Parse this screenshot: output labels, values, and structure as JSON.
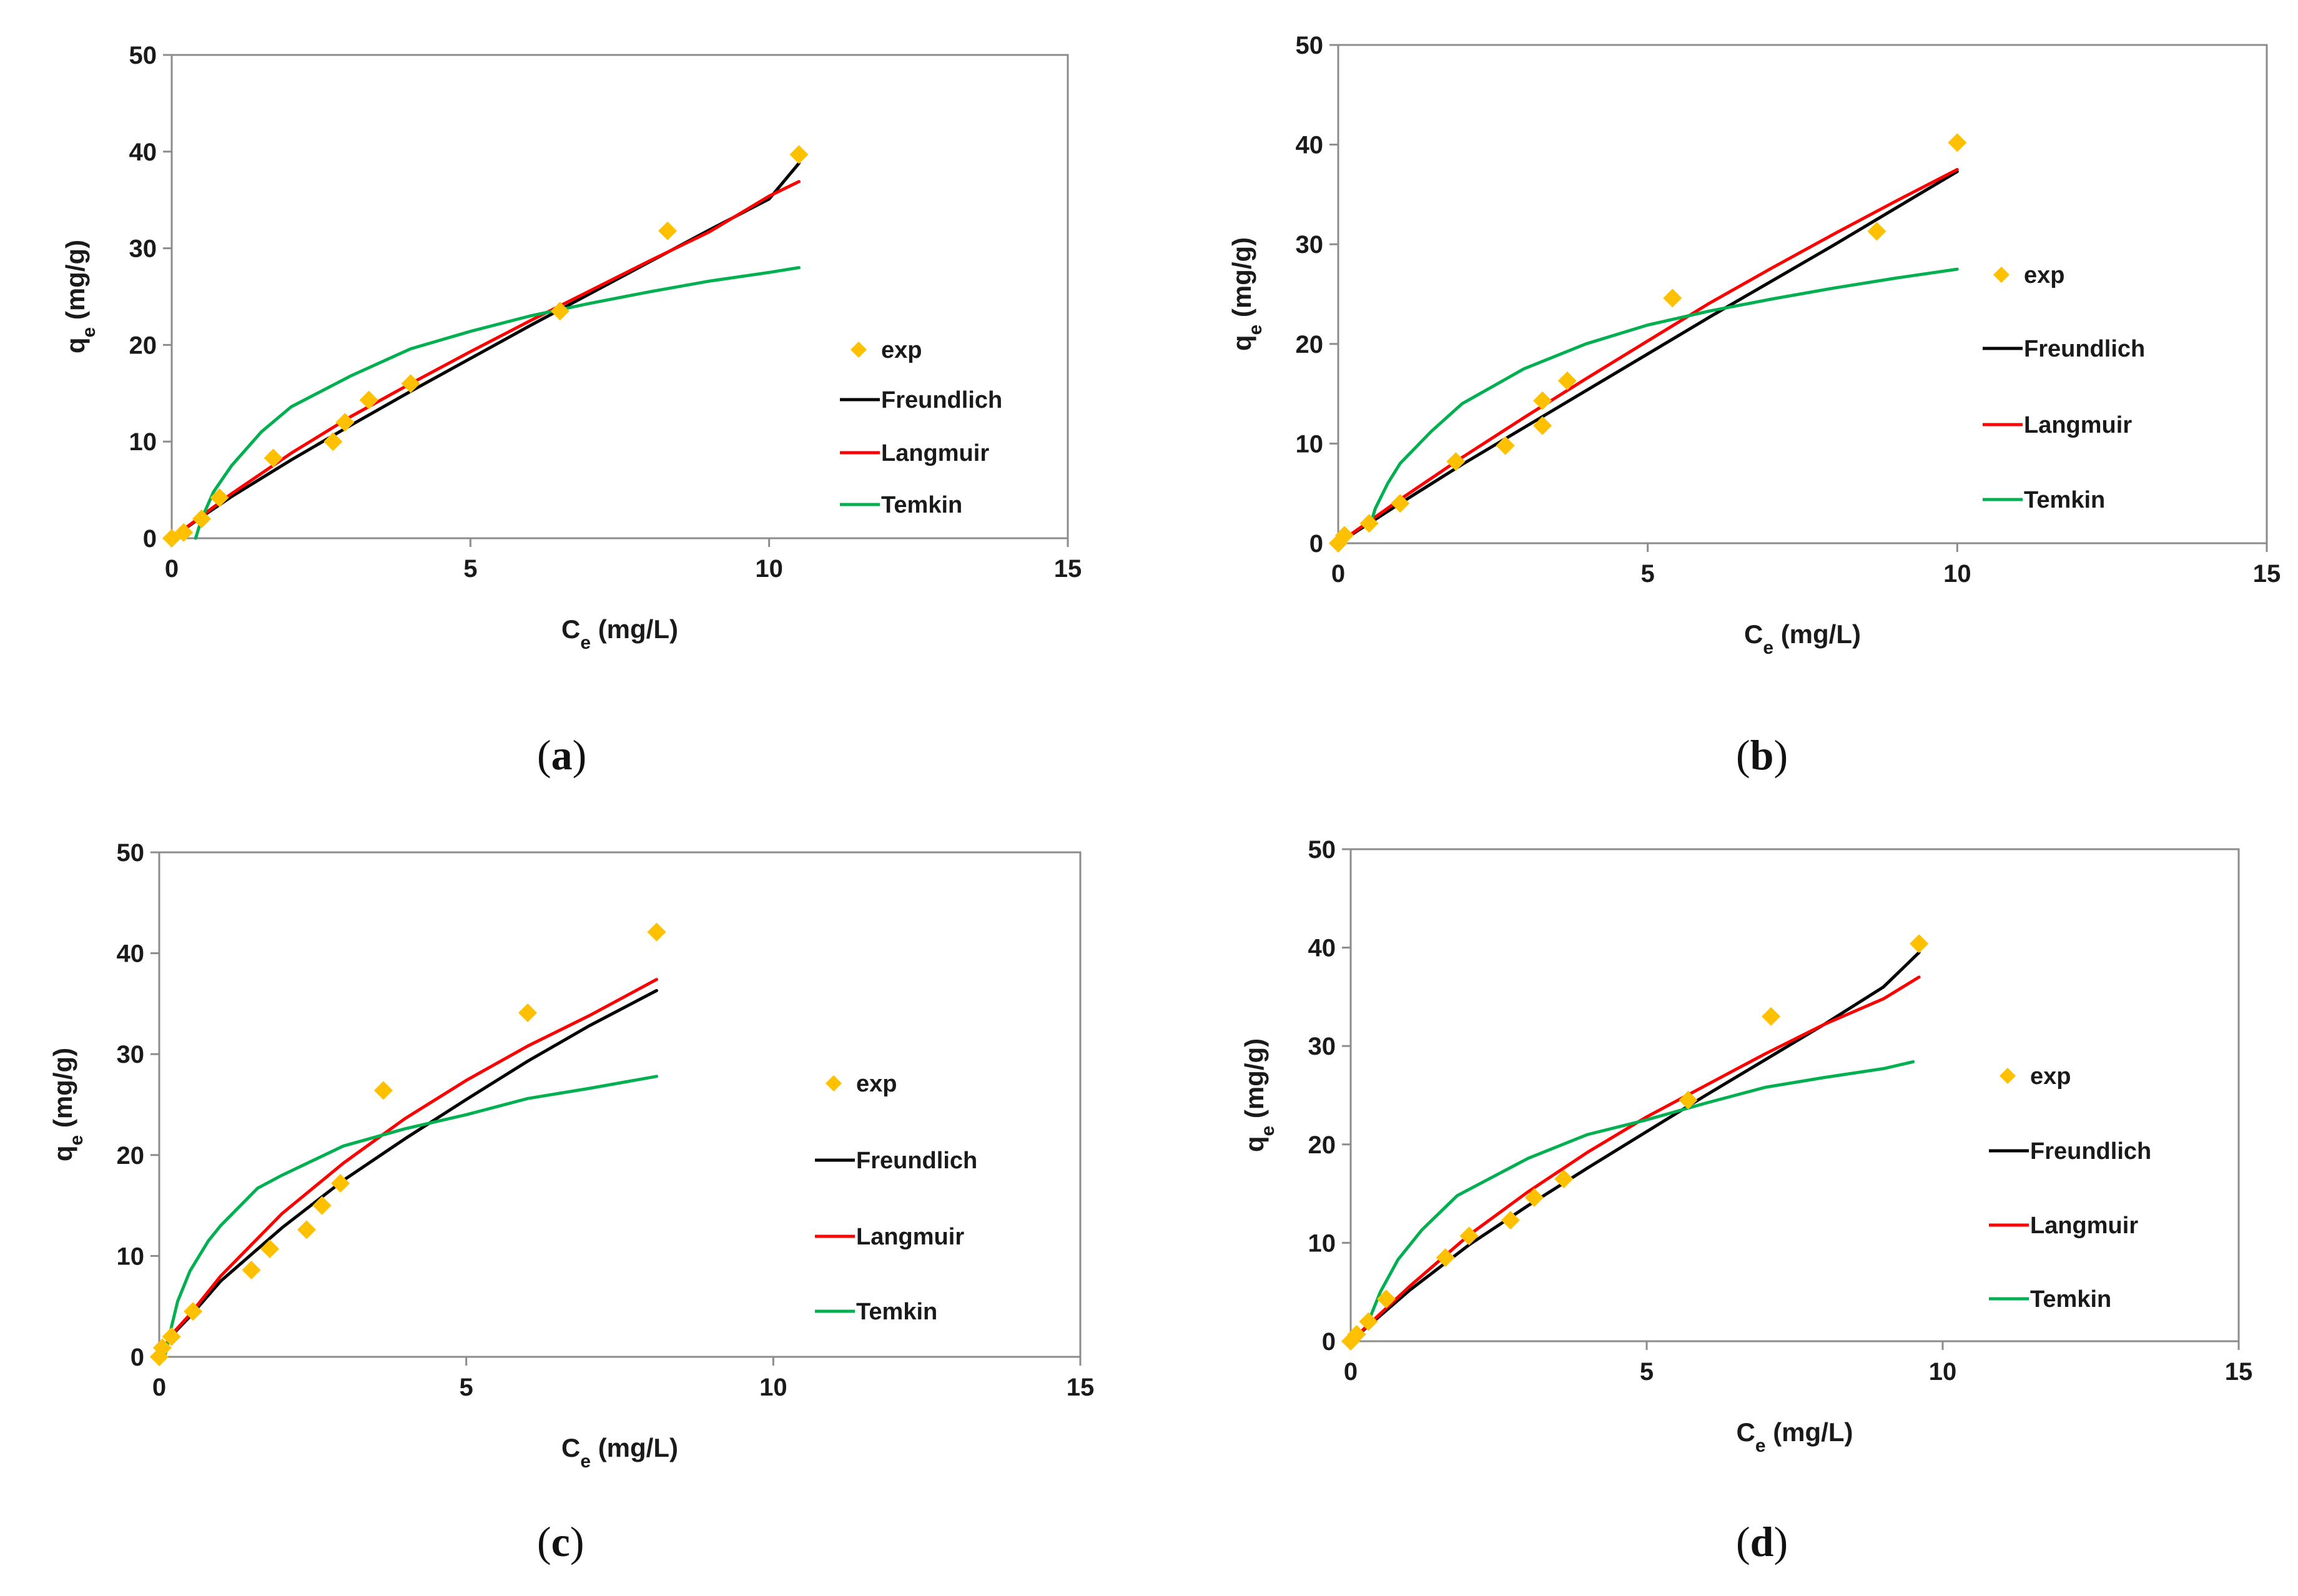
{
  "chart_data": [
    {
      "type": "scatter+line",
      "panel": "a",
      "caption": "a",
      "xlabel": "Ce (mg/L)",
      "ylabel": "qe (mg/g)",
      "xlim": [
        0,
        15
      ],
      "ylim": [
        0,
        50
      ],
      "xticks": [
        0,
        5,
        10,
        15
      ],
      "yticks": [
        0,
        10,
        20,
        30,
        40,
        50
      ],
      "grid": false,
      "legend_position": "right",
      "series": [
        {
          "name": "exp",
          "kind": "markers",
          "color": "#FFC000",
          "points": [
            [
              0,
              0
            ],
            [
              0.2,
              0.6
            ],
            [
              0.5,
              2
            ],
            [
              0.8,
              4.2
            ],
            [
              1.7,
              8.3
            ],
            [
              2.7,
              10
            ],
            [
              2.9,
              12
            ],
            [
              3.3,
              14.3
            ],
            [
              4.0,
              16
            ],
            [
              6.5,
              23.5
            ],
            [
              8.3,
              31.8
            ],
            [
              10.5,
              39.7
            ]
          ]
        },
        {
          "name": "Freundlich",
          "kind": "line",
          "color": "#000000",
          "points": [
            [
              0,
              0
            ],
            [
              0.5,
              2.2
            ],
            [
              1,
              4.3
            ],
            [
              2,
              8.1
            ],
            [
              3,
              11.7
            ],
            [
              4,
              15.2
            ],
            [
              5,
              18.6
            ],
            [
              6,
              22
            ],
            [
              7,
              25.3
            ],
            [
              8,
              28.6
            ],
            [
              9,
              31.9
            ],
            [
              10,
              35.1
            ],
            [
              10.5,
              38.8
            ]
          ]
        },
        {
          "name": "Langmuir",
          "kind": "line",
          "color": "#FF0000",
          "points": [
            [
              0,
              0
            ],
            [
              0.5,
              2.3
            ],
            [
              1,
              4.6
            ],
            [
              2,
              8.8
            ],
            [
              3,
              12.6
            ],
            [
              4,
              16
            ],
            [
              5,
              19.3
            ],
            [
              6,
              22.5
            ],
            [
              7,
              25.6
            ],
            [
              8,
              28.7
            ],
            [
              9,
              31.7
            ],
            [
              10,
              35.4
            ],
            [
              10.5,
              36.9
            ]
          ]
        },
        {
          "name": "Temkin",
          "kind": "line",
          "color": "#00B050",
          "points": [
            [
              0.4,
              0
            ],
            [
              0.5,
              2
            ],
            [
              0.7,
              4.8
            ],
            [
              1,
              7.5
            ],
            [
              1.5,
              11
            ],
            [
              2,
              13.6
            ],
            [
              3,
              16.8
            ],
            [
              4,
              19.6
            ],
            [
              5,
              21.4
            ],
            [
              6,
              23
            ],
            [
              7,
              24.3
            ],
            [
              8,
              25.5
            ],
            [
              9,
              26.6
            ],
            [
              10,
              27.5
            ],
            [
              10.5,
              28
            ]
          ]
        }
      ]
    },
    {
      "type": "scatter+line",
      "panel": "b",
      "caption": "b",
      "xlabel": "Ce (mg/L)",
      "ylabel": "qe (mg/g)",
      "xlim": [
        0,
        15
      ],
      "ylim": [
        0,
        50
      ],
      "xticks": [
        0,
        5,
        10,
        15
      ],
      "yticks": [
        0,
        10,
        20,
        30,
        40,
        50
      ],
      "grid": false,
      "legend_position": "right",
      "series": [
        {
          "name": "exp",
          "kind": "markers",
          "color": "#FFC000",
          "points": [
            [
              0,
              0
            ],
            [
              0.1,
              0.8
            ],
            [
              0.5,
              2
            ],
            [
              1.0,
              4
            ],
            [
              1.9,
              8.2
            ],
            [
              2.7,
              9.8
            ],
            [
              3.3,
              11.8
            ],
            [
              3.3,
              14.3
            ],
            [
              3.7,
              16.3
            ],
            [
              5.4,
              24.6
            ],
            [
              8.7,
              31.3
            ],
            [
              10,
              40.2
            ]
          ]
        },
        {
          "name": "Freundlich",
          "kind": "line",
          "color": "#000000",
          "points": [
            [
              0,
              0
            ],
            [
              0.5,
              2
            ],
            [
              1,
              4
            ],
            [
              2,
              7.9
            ],
            [
              3,
              11.6
            ],
            [
              4,
              15.3
            ],
            [
              5,
              19
            ],
            [
              6,
              22.7
            ],
            [
              7,
              26.3
            ],
            [
              8,
              29.9
            ],
            [
              9,
              33.6
            ],
            [
              10,
              37.3
            ]
          ]
        },
        {
          "name": "Langmuir",
          "kind": "line",
          "color": "#FF0000",
          "points": [
            [
              0,
              0
            ],
            [
              0.5,
              2.2
            ],
            [
              1,
              4.4
            ],
            [
              2,
              8.6
            ],
            [
              3,
              12.6
            ],
            [
              4,
              16.5
            ],
            [
              5,
              20.3
            ],
            [
              6,
              24.1
            ],
            [
              7,
              27.6
            ],
            [
              8,
              31
            ],
            [
              9,
              34.3
            ],
            [
              10,
              37.5
            ]
          ]
        },
        {
          "name": "Temkin",
          "kind": "line",
          "color": "#00B050",
          "points": [
            [
              0.5,
              1.5
            ],
            [
              0.6,
              3.5
            ],
            [
              0.8,
              6
            ],
            [
              1,
              8
            ],
            [
              1.5,
              11.2
            ],
            [
              2,
              14
            ],
            [
              3,
              17.5
            ],
            [
              4,
              20
            ],
            [
              5,
              21.9
            ],
            [
              6,
              23.3
            ],
            [
              7,
              24.5
            ],
            [
              8,
              25.6
            ],
            [
              9,
              26.6
            ],
            [
              10,
              27.5
            ]
          ]
        }
      ]
    },
    {
      "type": "scatter+line",
      "panel": "c",
      "caption": "c",
      "xlabel": "Ce (mg/L)",
      "ylabel": "qe (mg/g)",
      "xlim": [
        0,
        15
      ],
      "ylim": [
        0,
        50
      ],
      "xticks": [
        0,
        5,
        10,
        15
      ],
      "yticks": [
        0,
        10,
        20,
        30,
        40,
        50
      ],
      "grid": false,
      "legend_position": "right",
      "series": [
        {
          "name": "exp",
          "kind": "markers",
          "color": "#FFC000",
          "points": [
            [
              0,
              0
            ],
            [
              0.05,
              0.9
            ],
            [
              0.2,
              2
            ],
            [
              0.55,
              4.5
            ],
            [
              1.5,
              8.6
            ],
            [
              1.8,
              10.7
            ],
            [
              2.4,
              12.6
            ],
            [
              2.65,
              15
            ],
            [
              2.95,
              17.2
            ],
            [
              3.65,
              26.4
            ],
            [
              6.0,
              34.1
            ],
            [
              8.1,
              42.1
            ]
          ]
        },
        {
          "name": "Freundlich",
          "kind": "line",
          "color": "#000000",
          "points": [
            [
              0,
              0
            ],
            [
              0.2,
              2.1
            ],
            [
              0.5,
              4
            ],
            [
              1,
              7.5
            ],
            [
              2,
              12.8
            ],
            [
              3,
              17.5
            ],
            [
              4,
              21.6
            ],
            [
              5,
              25.5
            ],
            [
              6,
              29.3
            ],
            [
              7,
              32.8
            ],
            [
              8.1,
              36.3
            ]
          ]
        },
        {
          "name": "Langmuir",
          "kind": "line",
          "color": "#FF0000",
          "points": [
            [
              0,
              0
            ],
            [
              0.2,
              2.2
            ],
            [
              0.5,
              4.2
            ],
            [
              1,
              8
            ],
            [
              2,
              14.2
            ],
            [
              3,
              19.2
            ],
            [
              4,
              23.6
            ],
            [
              5,
              27.4
            ],
            [
              6,
              30.8
            ],
            [
              7,
              33.8
            ],
            [
              8.1,
              37.4
            ]
          ]
        },
        {
          "name": "Temkin",
          "kind": "line",
          "color": "#00B050",
          "points": [
            [
              0.1,
              0.3
            ],
            [
              0.2,
              3
            ],
            [
              0.3,
              5.5
            ],
            [
              0.5,
              8.5
            ],
            [
              0.8,
              11.5
            ],
            [
              1,
              13
            ],
            [
              1.6,
              16.7
            ],
            [
              2,
              18
            ],
            [
              3,
              20.9
            ],
            [
              4,
              22.6
            ],
            [
              5,
              24
            ],
            [
              6,
              25.6
            ],
            [
              7,
              26.6
            ],
            [
              8.1,
              27.8
            ]
          ]
        }
      ]
    },
    {
      "type": "scatter+line",
      "panel": "d",
      "caption": "d",
      "xlabel": "Ce (mg/L)",
      "ylabel": "qe (mg/g)",
      "xlim": [
        0,
        15
      ],
      "ylim": [
        0,
        50
      ],
      "xticks": [
        0,
        5,
        10,
        15
      ],
      "yticks": [
        0,
        10,
        20,
        30,
        40,
        50
      ],
      "grid": false,
      "legend_position": "right",
      "series": [
        {
          "name": "exp",
          "kind": "markers",
          "color": "#FFC000",
          "points": [
            [
              0,
              0
            ],
            [
              0.1,
              0.7
            ],
            [
              0.3,
              2
            ],
            [
              0.6,
              4.3
            ],
            [
              1.6,
              8.5
            ],
            [
              2.0,
              10.7
            ],
            [
              2.7,
              12.3
            ],
            [
              3.1,
              14.6
            ],
            [
              3.6,
              16.5
            ],
            [
              5.7,
              24.5
            ],
            [
              7.1,
              33
            ],
            [
              9.6,
              40.4
            ]
          ]
        },
        {
          "name": "Freundlich",
          "kind": "line",
          "color": "#000000",
          "points": [
            [
              0,
              0
            ],
            [
              0.5,
              2.6
            ],
            [
              1,
              5.2
            ],
            [
              2,
              9.8
            ],
            [
              3,
              13.8
            ],
            [
              4,
              17.6
            ],
            [
              5,
              21.3
            ],
            [
              6,
              25
            ],
            [
              7,
              28.6
            ],
            [
              8,
              32.2
            ],
            [
              9,
              36
            ],
            [
              9.6,
              39.5
            ]
          ]
        },
        {
          "name": "Langmuir",
          "kind": "line",
          "color": "#FF0000",
          "points": [
            [
              0,
              0
            ],
            [
              0.5,
              2.8
            ],
            [
              1,
              5.6
            ],
            [
              2,
              10.8
            ],
            [
              3,
              15.2
            ],
            [
              4,
              19.2
            ],
            [
              5,
              22.8
            ],
            [
              6,
              26
            ],
            [
              7,
              29.2
            ],
            [
              8,
              32.2
            ],
            [
              9,
              34.8
            ],
            [
              9.6,
              37
            ]
          ]
        },
        {
          "name": "Temkin",
          "kind": "line",
          "color": "#00B050",
          "points": [
            [
              0.3,
              2
            ],
            [
              0.5,
              5
            ],
            [
              0.8,
              8.3
            ],
            [
              1.2,
              11.3
            ],
            [
              1.8,
              14.8
            ],
            [
              3,
              18.6
            ],
            [
              4,
              21
            ],
            [
              5,
              22.5
            ],
            [
              6,
              24.2
            ],
            [
              7,
              25.8
            ],
            [
              8,
              26.8
            ],
            [
              9,
              27.7
            ],
            [
              9.5,
              28.4
            ]
          ]
        }
      ]
    }
  ]
}
